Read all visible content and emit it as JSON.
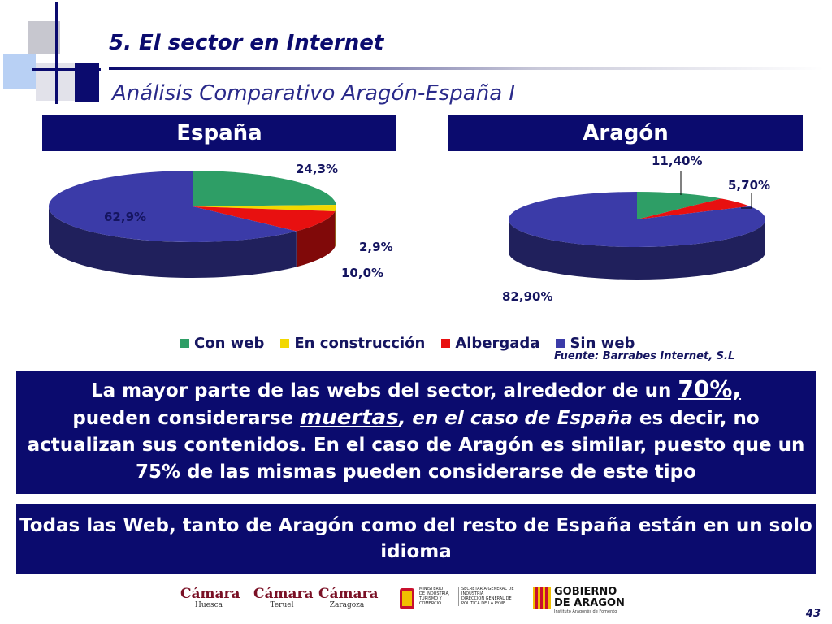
{
  "slide": {
    "title": "5. El  sector en Internet",
    "subtitle": "Análisis Comparativo Aragón-España I",
    "page_number": "43",
    "source": "Fuente: Barrabes Internet, S.L"
  },
  "headers": {
    "spain": "España",
    "aragon": "Aragón"
  },
  "chart_data": [
    {
      "type": "pie",
      "title": "España",
      "categories": [
        "Con web",
        "En construcción",
        "Albergada",
        "Sin web"
      ],
      "values": [
        24.3,
        2.9,
        10.0,
        62.9
      ],
      "labels": [
        "24,3%",
        "2,9%",
        "10,0%",
        "62,9%"
      ],
      "colors": [
        "#2e9e66",
        "#f2d800",
        "#e81010",
        "#3b3ba8"
      ]
    },
    {
      "type": "pie",
      "title": "Aragón",
      "categories": [
        "Con web",
        "En construcción",
        "Albergada",
        "Sin web"
      ],
      "values": [
        11.4,
        0.0,
        5.7,
        82.9
      ],
      "labels": [
        "11,40%",
        "",
        "5,70%",
        "82,90%"
      ],
      "colors": [
        "#2e9e66",
        "#f2d800",
        "#e81010",
        "#3b3ba8"
      ]
    }
  ],
  "legend": [
    {
      "label": "Con web",
      "color": "#2e9e66"
    },
    {
      "label": "En construcción",
      "color": "#f2d800"
    },
    {
      "label": "Albergada",
      "color": "#e81010"
    },
    {
      "label": "Sin web",
      "color": "#3b3ba8"
    }
  ],
  "box1": {
    "t1": "La mayor parte de las webs del sector, alrededor de un ",
    "t2": "70%,",
    "t3": "pueden considerarse ",
    "t4": "muertas",
    "t5": ", en el caso de España",
    "t6": " es decir, no actualizan sus contenidos. En el caso de Aragón es similar, puesto que un 75% de las mismas pueden considerarse de este tipo"
  },
  "box2": {
    "text": "Todas las  Web, tanto de Aragón como del resto de España están en un solo idioma"
  },
  "footer": {
    "camaras": [
      {
        "name": "Cámara",
        "city": "Huesca"
      },
      {
        "name": "Cámara",
        "city": "Teruel"
      },
      {
        "name": "Cámara",
        "city": "Zaragoza"
      }
    ],
    "ministerio": [
      "MINISTERIO",
      "DE INDUSTRIA,",
      "TURISMO Y",
      "COMERCIO"
    ],
    "secretaria": [
      "SECRETARÍA GENERAL DE",
      "INDUSTRIA",
      "DIRECCIÓN GENERAL DE",
      "POLÍTICA DE LA PYME"
    ],
    "gobierno": [
      "GOBIERNO",
      "DE ARAGON"
    ],
    "gobierno_sub": "Instituto Aragonés de Fomento"
  }
}
